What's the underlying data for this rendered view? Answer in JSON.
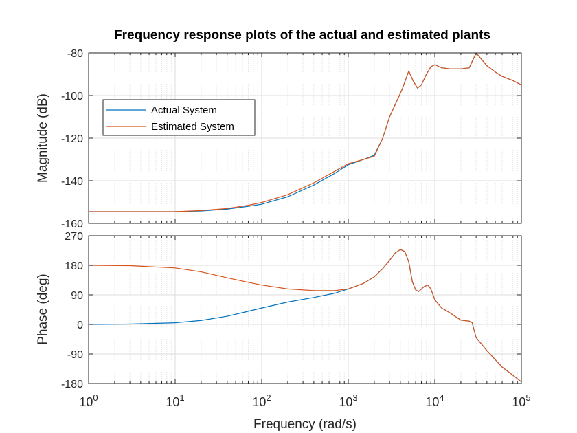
{
  "chart_data": {
    "type": "line",
    "title": "Frequency response plots of the actual and estimated plants",
    "xlabel": "Frequency  (rad/s)",
    "x_scale": "log",
    "xlim": [
      1,
      100000
    ],
    "x_tick_values": [
      1,
      10,
      100,
      1000,
      10000,
      100000
    ],
    "x_tick_labels": [
      {
        "base": "10",
        "exp": "0"
      },
      {
        "base": "10",
        "exp": "1"
      },
      {
        "base": "10",
        "exp": "2"
      },
      {
        "base": "10",
        "exp": "3"
      },
      {
        "base": "10",
        "exp": "4"
      },
      {
        "base": "10",
        "exp": "5"
      }
    ],
    "grid": true,
    "legend": {
      "location": "left, upper-middle of magnitude panel",
      "entries": [
        "Actual System",
        "Estimated System"
      ]
    },
    "colors": {
      "actual": "#0072BD",
      "estimated": "#D95319",
      "grid": "#dcdcdc",
      "axes": "#262626"
    },
    "subplots": [
      {
        "name": "magnitude",
        "ylabel": "Magnitude (dB)",
        "ylim": [
          -160,
          -80
        ],
        "y_ticks": [
          -160,
          -140,
          -120,
          -100,
          -80
        ],
        "y_tick_labels": [
          "-160",
          "-140",
          "-120",
          "-100",
          "-80"
        ],
        "series": [
          {
            "name": "Actual System",
            "color": "#0072BD",
            "points": [
              [
                1,
                -154.5
              ],
              [
                10,
                -154.5
              ],
              [
                20,
                -154.2
              ],
              [
                40,
                -153.3
              ],
              [
                70,
                -152
              ],
              [
                100,
                -151
              ],
              [
                200,
                -147.5
              ],
              [
                400,
                -142
              ],
              [
                700,
                -136.5
              ],
              [
                1000,
                -132.5
              ],
              [
                1500,
                -130
              ],
              [
                2000,
                -128
              ],
              [
                2500,
                -120
              ],
              [
                3000,
                -110
              ],
              [
                3600,
                -103
              ],
              [
                4200,
                -97
              ],
              [
                5000,
                -88.5
              ],
              [
                5600,
                -93
              ],
              [
                6300,
                -96.5
              ],
              [
                7000,
                -95
              ],
              [
                8000,
                -90
              ],
              [
                9000,
                -86.5
              ],
              [
                10000,
                -85.5
              ],
              [
                12000,
                -87
              ],
              [
                15000,
                -87.5
              ],
              [
                20000,
                -87.5
              ],
              [
                25000,
                -87
              ],
              [
                30000,
                -80
              ],
              [
                40000,
                -86
              ],
              [
                50000,
                -89
              ],
              [
                60000,
                -91
              ],
              [
                80000,
                -93
              ],
              [
                100000,
                -95
              ]
            ]
          },
          {
            "name": "Estimated System",
            "color": "#D95319",
            "points": [
              [
                1,
                -154.5
              ],
              [
                10,
                -154.5
              ],
              [
                20,
                -154
              ],
              [
                40,
                -153
              ],
              [
                70,
                -151.5
              ],
              [
                100,
                -150.2
              ],
              [
                200,
                -146.5
              ],
              [
                400,
                -141
              ],
              [
                700,
                -135.5
              ],
              [
                1000,
                -132
              ],
              [
                1500,
                -130
              ],
              [
                2000,
                -128.5
              ],
              [
                2500,
                -120
              ],
              [
                3000,
                -110
              ],
              [
                3600,
                -103
              ],
              [
                4200,
                -97
              ],
              [
                5000,
                -88.5
              ],
              [
                5600,
                -93
              ],
              [
                6300,
                -96.5
              ],
              [
                7000,
                -95
              ],
              [
                8000,
                -90
              ],
              [
                9000,
                -86.5
              ],
              [
                10000,
                -85.5
              ],
              [
                12000,
                -87
              ],
              [
                15000,
                -87.5
              ],
              [
                20000,
                -87.5
              ],
              [
                25000,
                -87
              ],
              [
                30000,
                -80
              ],
              [
                40000,
                -86
              ],
              [
                50000,
                -89
              ],
              [
                60000,
                -91
              ],
              [
                80000,
                -93
              ],
              [
                100000,
                -95
              ]
            ]
          }
        ]
      },
      {
        "name": "phase",
        "ylabel": "Phase (deg)",
        "ylim": [
          -180,
          270
        ],
        "y_ticks": [
          -180,
          -90,
          0,
          90,
          180,
          270
        ],
        "y_tick_labels": [
          "-180",
          "-90",
          "0",
          "90",
          "180",
          "270"
        ],
        "series": [
          {
            "name": "Actual System",
            "color": "#0072BD",
            "points": [
              [
                1,
                0
              ],
              [
                3,
                1
              ],
              [
                10,
                5
              ],
              [
                20,
                12
              ],
              [
                40,
                25
              ],
              [
                70,
                40
              ],
              [
                100,
                50
              ],
              [
                200,
                68
              ],
              [
                400,
                82
              ],
              [
                700,
                95
              ],
              [
                1000,
                108
              ],
              [
                1500,
                125
              ],
              [
                2000,
                145
              ],
              [
                2500,
                170
              ],
              [
                3000,
                195
              ],
              [
                3500,
                218
              ],
              [
                4000,
                228
              ],
              [
                4500,
                222
              ],
              [
                5000,
                190
              ],
              [
                5500,
                130
              ],
              [
                6000,
                105
              ],
              [
                6500,
                100
              ],
              [
                7500,
                115
              ],
              [
                8300,
                120
              ],
              [
                9000,
                108
              ],
              [
                10000,
                75
              ],
              [
                12000,
                50
              ],
              [
                15000,
                35
              ],
              [
                20000,
                13
              ],
              [
                25000,
                10
              ],
              [
                27000,
                5
              ],
              [
                30000,
                -40
              ],
              [
                40000,
                -80
              ],
              [
                60000,
                -130
              ],
              [
                80000,
                -155
              ],
              [
                100000,
                -175
              ]
            ]
          },
          {
            "name": "Estimated System",
            "color": "#D95319",
            "points": [
              [
                1,
                180
              ],
              [
                3,
                179
              ],
              [
                10,
                172
              ],
              [
                20,
                160
              ],
              [
                40,
                142
              ],
              [
                70,
                128
              ],
              [
                100,
                120
              ],
              [
                200,
                108
              ],
              [
                400,
                103
              ],
              [
                700,
                103
              ],
              [
                1000,
                108
              ],
              [
                1500,
                125
              ],
              [
                2000,
                145
              ],
              [
                2500,
                170
              ],
              [
                3000,
                195
              ],
              [
                3500,
                218
              ],
              [
                4000,
                228
              ],
              [
                4500,
                222
              ],
              [
                5000,
                190
              ],
              [
                5500,
                130
              ],
              [
                6000,
                105
              ],
              [
                6500,
                100
              ],
              [
                7500,
                115
              ],
              [
                8300,
                120
              ],
              [
                9000,
                108
              ],
              [
                10000,
                75
              ],
              [
                12000,
                50
              ],
              [
                15000,
                35
              ],
              [
                20000,
                13
              ],
              [
                25000,
                10
              ],
              [
                27000,
                5
              ],
              [
                30000,
                -40
              ],
              [
                40000,
                -80
              ],
              [
                60000,
                -130
              ],
              [
                80000,
                -155
              ],
              [
                100000,
                -175
              ]
            ]
          }
        ]
      }
    ]
  }
}
